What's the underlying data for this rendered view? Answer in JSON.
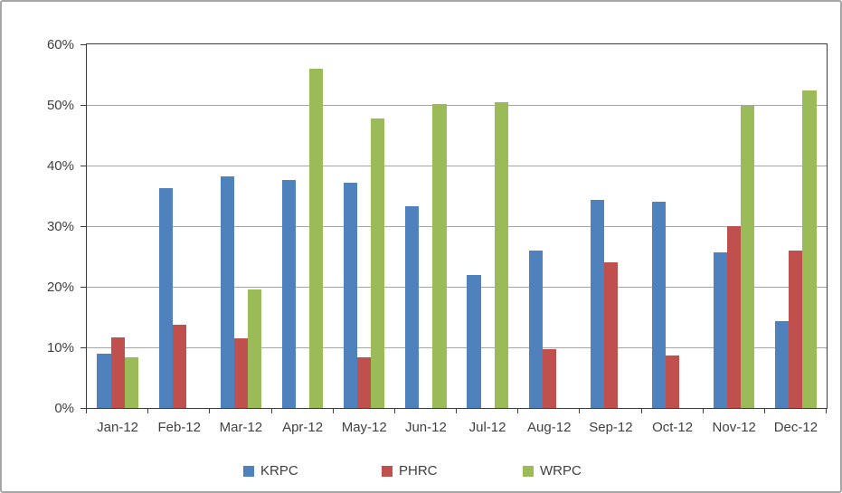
{
  "chart_data": {
    "type": "bar",
    "title": "",
    "categories": [
      "Jan-12",
      "Feb-12",
      "Mar-12",
      "Apr-12",
      "May-12",
      "Jun-12",
      "Jul-12",
      "Aug-12",
      "Sep-12",
      "Oct-12",
      "Nov-12",
      "Dec-12"
    ],
    "series": [
      {
        "name": "KRPC",
        "color": "#4F81BD",
        "values": [
          9.0,
          36.3,
          38.2,
          37.6,
          37.2,
          33.3,
          21.9,
          25.9,
          34.3,
          34.1,
          25.7,
          14.3
        ]
      },
      {
        "name": "PHRC",
        "color": "#C0504D",
        "values": [
          11.7,
          13.7,
          11.5,
          0,
          8.4,
          0,
          0,
          9.7,
          24.1,
          8.7,
          30.0,
          26.0
        ]
      },
      {
        "name": "WRPC",
        "color": "#9BBB59",
        "values": [
          8.4,
          0,
          19.6,
          56.0,
          47.8,
          50.2,
          50.4,
          0,
          0,
          0,
          49.9,
          52.4
        ]
      }
    ],
    "y_axis": {
      "min": 0,
      "max": 60,
      "step": 10,
      "tick_labels": [
        "0%",
        "10%",
        "20%",
        "30%",
        "40%",
        "50%",
        "60%"
      ],
      "format": "percent"
    },
    "x_axis": {
      "tick_labels": [
        "Jan-12",
        "Feb-12",
        "Mar-12",
        "Apr-12",
        "May-12",
        "Jun-12",
        "Jul-12",
        "Aug-12",
        "Sep-12",
        "Oct-12",
        "Nov-12",
        "Dec-12"
      ]
    },
    "grid": true,
    "legend_position": "bottom",
    "colors": {
      "gridline": "#A6A6A6",
      "axis": "#3B3B3B",
      "text": "#3F3F3F",
      "background": "#FFFFFF",
      "chart_border": "#A6A6A6"
    }
  }
}
